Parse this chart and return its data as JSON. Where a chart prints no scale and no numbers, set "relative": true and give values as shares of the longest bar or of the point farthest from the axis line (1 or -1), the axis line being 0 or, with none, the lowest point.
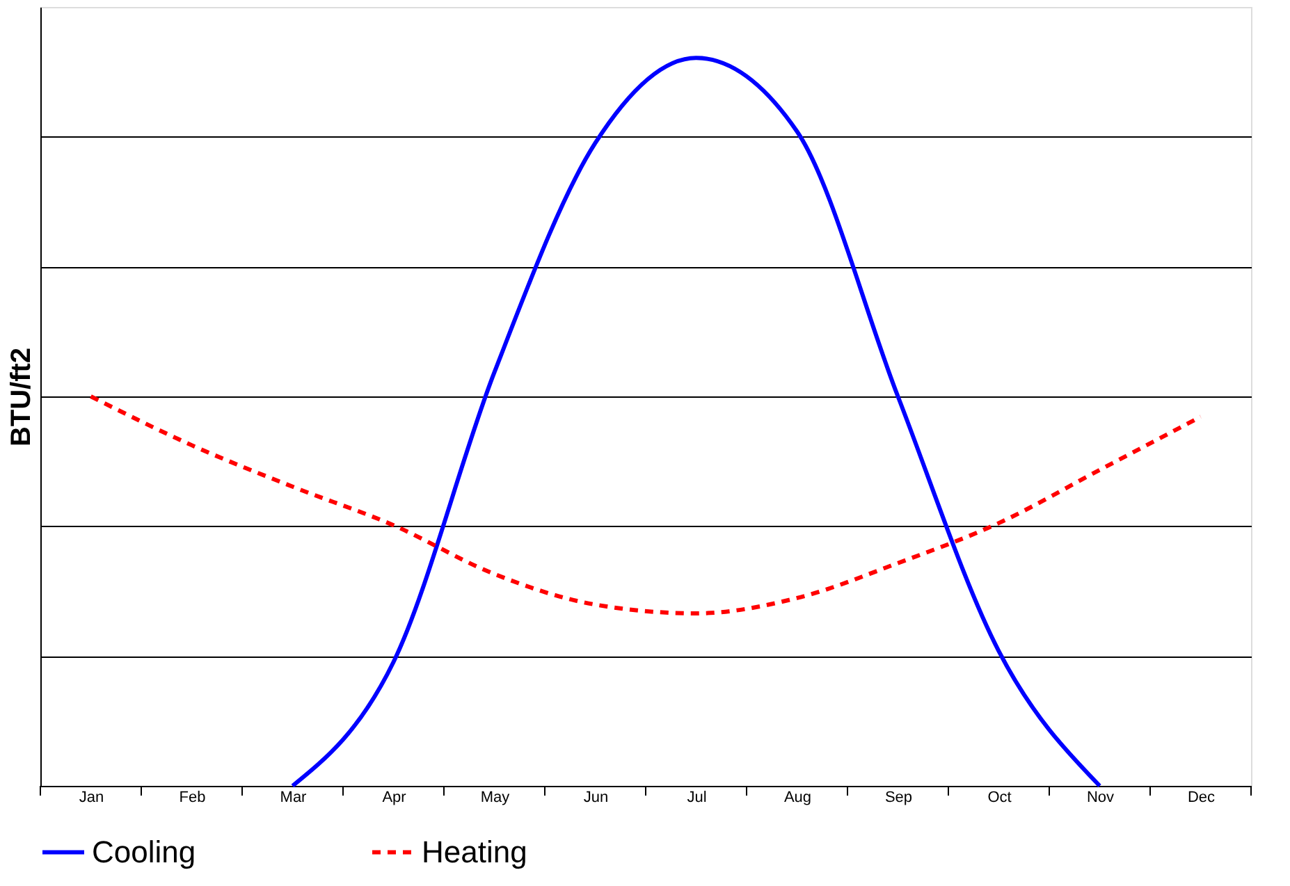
{
  "chart_data": {
    "type": "line",
    "ylabel": "BTU/ft2",
    "relative": true,
    "grid": "y",
    "legend": "bottom",
    "categories": [
      "Jan",
      "Feb",
      "Mar",
      "Apr",
      "May",
      "Jun",
      "Jul",
      "Aug",
      "Sep",
      "Oct",
      "Nov",
      "Dec"
    ],
    "series": [
      {
        "name": "Cooling",
        "color": "#0000ff",
        "line_style": "solid",
        "values": [
          null,
          null,
          0,
          0.17,
          0.568,
          0.883,
          1,
          0.899,
          0.535,
          0.185,
          0,
          null
        ]
      },
      {
        "name": "Heating",
        "color": "#ff0000",
        "line_style": "dashed",
        "values": [
          0.535,
          0.468,
          0.411,
          0.358,
          0.291,
          0.249,
          0.237,
          0.258,
          0.306,
          0.361,
          0.434,
          0.507
        ]
      }
    ]
  }
}
